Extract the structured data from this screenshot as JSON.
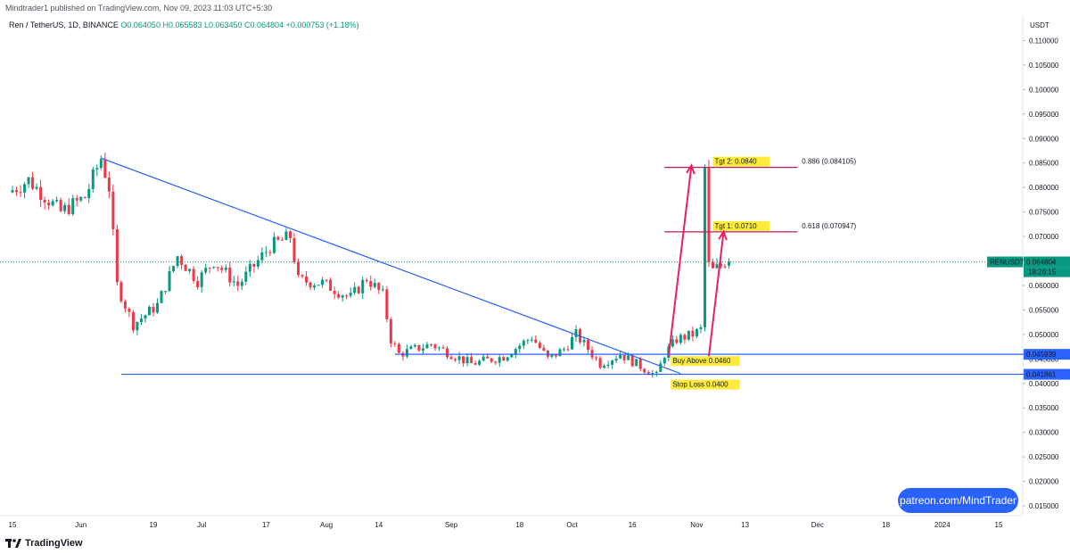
{
  "header": {
    "publisher": "Mindtrader1 published on TradingView.com, Nov 09, 2023 11:03 UTC+5:30",
    "symbol": "Ren / TetherUS, 1D, BINANCE",
    "ohlc": "O0.064050 H0.065583 L0.063450 C0.064804 +0.000753 (+1.18%)"
  },
  "footer": {
    "brand": "TradingView",
    "patreon": "patreon.com/MindTrader"
  },
  "colors": {
    "up": "#089981",
    "down": "#f23645",
    "trendline": "#2962ff",
    "target_line": "#c2185b",
    "highlight": "#ffeb3b"
  },
  "chart_data": {
    "type": "candlestick",
    "symbol": "RENUSDT",
    "y_axis_currency": "USDT",
    "ylim": [
      0.013,
      0.115
    ],
    "y_ticks": [
      0.015,
      0.02,
      0.025,
      0.03,
      0.035,
      0.04,
      0.045,
      0.05,
      0.055,
      0.06,
      0.065,
      0.07,
      0.075,
      0.08,
      0.085,
      0.09,
      0.095,
      0.1,
      0.105,
      0.11
    ],
    "y_tick_labels": [
      "0.015000",
      "0.020000",
      "0.025000",
      "0.030000",
      "0.035000",
      "0.040000",
      "0.045000",
      "0.050000",
      "0.055000",
      "0.060000",
      "0.065000",
      "0.070000",
      "0.075000",
      "0.080000",
      "0.085000",
      "0.090000",
      "0.095000",
      "0.100000",
      "0.105000",
      "0.110000"
    ],
    "x_axis": {
      "start": "2023-05-15",
      "end": "2024-01-15",
      "labels": [
        {
          "date": "2023-05-15",
          "text": "15"
        },
        {
          "date": "2023-06-01",
          "text": "Jun"
        },
        {
          "date": "2023-06-19",
          "text": "19"
        },
        {
          "date": "2023-07-01",
          "text": "Jul"
        },
        {
          "date": "2023-07-17",
          "text": "17"
        },
        {
          "date": "2023-08-01",
          "text": "Aug"
        },
        {
          "date": "2023-08-14",
          "text": "14"
        },
        {
          "date": "2023-09-01",
          "text": "Sep"
        },
        {
          "date": "2023-09-18",
          "text": "18"
        },
        {
          "date": "2023-10-01",
          "text": "Oct"
        },
        {
          "date": "2023-10-16",
          "text": "16"
        },
        {
          "date": "2023-11-01",
          "text": "Nov"
        },
        {
          "date": "2023-11-13",
          "text": "13"
        },
        {
          "date": "2023-12-01",
          "text": "Dec"
        },
        {
          "date": "2023-12-18",
          "text": "18"
        },
        {
          "date": "2024-01-01",
          "text": "2024"
        },
        {
          "date": "2024-01-15",
          "text": "15"
        }
      ]
    },
    "series_path_start": "2023-05-15",
    "close_path": [
      {
        "date": "2023-05-15",
        "close": 0.079
      },
      {
        "date": "2023-05-20",
        "close": 0.0815
      },
      {
        "date": "2023-05-28",
        "close": 0.075
      },
      {
        "date": "2023-06-03",
        "close": 0.078
      },
      {
        "date": "2023-06-07",
        "close": 0.086
      },
      {
        "date": "2023-06-09",
        "close": 0.08
      },
      {
        "date": "2023-06-11",
        "close": 0.06
      },
      {
        "date": "2023-06-15",
        "close": 0.052
      },
      {
        "date": "2023-06-21",
        "close": 0.056
      },
      {
        "date": "2023-06-26",
        "close": 0.066
      },
      {
        "date": "2023-07-01",
        "close": 0.061
      },
      {
        "date": "2023-07-05",
        "close": 0.065
      },
      {
        "date": "2023-07-11",
        "close": 0.06
      },
      {
        "date": "2023-07-19",
        "close": 0.068
      },
      {
        "date": "2023-07-24",
        "close": 0.07
      },
      {
        "date": "2023-07-26",
        "close": 0.061
      },
      {
        "date": "2023-08-01",
        "close": 0.0605
      },
      {
        "date": "2023-08-08",
        "close": 0.0575
      },
      {
        "date": "2023-08-12",
        "close": 0.0615
      },
      {
        "date": "2023-08-16",
        "close": 0.058
      },
      {
        "date": "2023-08-18",
        "close": 0.049
      },
      {
        "date": "2023-08-20",
        "close": 0.046
      },
      {
        "date": "2023-08-28",
        "close": 0.048
      },
      {
        "date": "2023-09-07",
        "close": 0.044
      },
      {
        "date": "2023-09-15",
        "close": 0.0455
      },
      {
        "date": "2023-09-22",
        "close": 0.0495
      },
      {
        "date": "2023-09-26",
        "close": 0.045
      },
      {
        "date": "2023-09-30",
        "close": 0.047
      },
      {
        "date": "2023-10-03",
        "close": 0.05
      },
      {
        "date": "2023-10-09",
        "close": 0.044
      },
      {
        "date": "2023-10-14",
        "close": 0.046
      },
      {
        "date": "2023-10-20",
        "close": 0.043
      },
      {
        "date": "2023-10-23",
        "close": 0.0415
      },
      {
        "date": "2023-10-25",
        "close": 0.046
      },
      {
        "date": "2023-10-28",
        "close": 0.049
      },
      {
        "date": "2023-11-01",
        "close": 0.05
      },
      {
        "date": "2023-11-03",
        "close": 0.051
      },
      {
        "date": "2023-11-04",
        "close": 0.084
      },
      {
        "date": "2023-11-05",
        "close": 0.064
      },
      {
        "date": "2023-11-06",
        "close": 0.063
      },
      {
        "date": "2023-11-08",
        "close": 0.064
      },
      {
        "date": "2023-11-09",
        "close": 0.0648
      }
    ],
    "last_candle": {
      "date": "2023-11-09",
      "open": 0.06405,
      "high": 0.065583,
      "low": 0.06345,
      "close": 0.064804,
      "change": 0.000753,
      "change_pct": 1.18
    },
    "price_labels": [
      {
        "label": "RENUSDT",
        "value": 0.064804,
        "text": "0.064804",
        "timer": "18:26:15"
      },
      {
        "value": 0.045939,
        "text": "0.045939"
      },
      {
        "value": 0.041861,
        "text": "0.041861"
      }
    ],
    "current_price_line": 0.064804,
    "horizontal_levels": [
      {
        "value": 0.045939,
        "from": "2023-08-18",
        "to": "2024-01-15",
        "annotation": "Buy Above 0.0460"
      },
      {
        "value": 0.041861,
        "from": "2023-06-11",
        "to": "2024-01-15",
        "annotation": "Stop Loss 0.0400"
      }
    ],
    "trendline": {
      "from": {
        "date": "2023-06-06",
        "value": 0.086
      },
      "to": {
        "date": "2023-10-28",
        "value": 0.042
      }
    },
    "targets": [
      {
        "value": 0.084105,
        "from": "2023-10-24",
        "to": "2023-11-26",
        "fib_label": "0.886 (0.084105)",
        "target_label": "Tgt 2: 0.0840"
      },
      {
        "value": 0.070947,
        "from": "2023-10-24",
        "to": "2023-11-26",
        "fib_label": "0.618 (0.070947)",
        "target_label": "Tgt 1: 0.0710"
      }
    ]
  }
}
